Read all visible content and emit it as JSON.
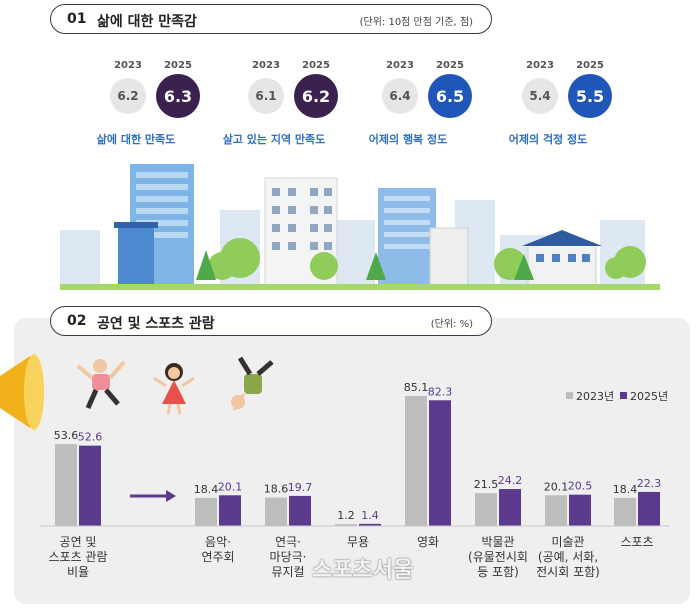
{
  "section1": {
    "number": "01",
    "title": "삶에 대한 만족감",
    "unit": "(단위: 10점 만점 기준, 점)",
    "year_a": "2023",
    "year_b": "2025",
    "metrics": [
      {
        "label": "삶에 대한 만족도",
        "v2023": "6.2",
        "v2025": "6.3",
        "color": "#3a2150"
      },
      {
        "label": "살고 있는 지역 만족도",
        "v2023": "6.1",
        "v2025": "6.2",
        "color": "#3a2150"
      },
      {
        "label": "어제의 행복 정도",
        "v2023": "6.4",
        "v2025": "6.5",
        "color": "#1f56b8"
      },
      {
        "label": "어제의 걱정 정도",
        "v2023": "5.4",
        "v2025": "5.5",
        "color": "#1f56b8"
      }
    ]
  },
  "section2": {
    "number": "02",
    "title": "공연 및 스포츠 관람",
    "unit": "(단위: %)"
  },
  "watermark": "스포츠서울",
  "chart_data": {
    "type": "bar",
    "categories": [
      "공연 및\n스포츠 관람\n비율",
      "음악·\n연주회",
      "연극·\n마당극·\n뮤지컬",
      "무용",
      "영화",
      "박물관\n(유물전시회\n등 포함)",
      "미술관\n(공예, 서화,\n전시회 포함)",
      "스포츠"
    ],
    "series": [
      {
        "name": "2023년",
        "values": [
          53.6,
          18.4,
          18.6,
          1.2,
          85.1,
          21.5,
          20.1,
          18.4
        ],
        "color": "#bdbdbd"
      },
      {
        "name": "2025년",
        "values": [
          52.6,
          20.1,
          19.7,
          1.4,
          82.3,
          24.2,
          20.5,
          22.3
        ],
        "color": "#5b3a8e"
      }
    ],
    "ylim": [
      0,
      90
    ],
    "legend": "top-right"
  }
}
